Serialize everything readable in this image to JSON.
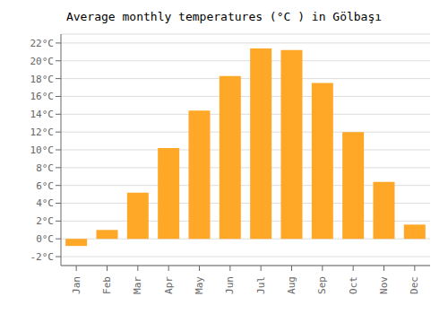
{
  "chart_data": {
    "type": "bar",
    "title": "Average monthly temperatures (°C ) in Gölbaşı",
    "categories": [
      "Jan",
      "Feb",
      "Mar",
      "Apr",
      "May",
      "Jun",
      "Jul",
      "Aug",
      "Sep",
      "Oct",
      "Nov",
      "Dec"
    ],
    "values": [
      -0.8,
      1.0,
      5.2,
      10.2,
      14.4,
      18.3,
      21.4,
      21.2,
      17.5,
      12.0,
      6.4,
      1.6
    ],
    "color": "#FFA726",
    "ylim": [
      -3,
      23
    ],
    "yticks": [
      {
        "value": -2,
        "label": "-2°C"
      },
      {
        "value": 0,
        "label": "0°C"
      },
      {
        "value": 2,
        "label": "2°C"
      },
      {
        "value": 4,
        "label": "4°C"
      },
      {
        "value": 6,
        "label": "6°C"
      },
      {
        "value": 8,
        "label": "8°C"
      },
      {
        "value": 10,
        "label": "10°C"
      },
      {
        "value": 12,
        "label": "12°C"
      },
      {
        "value": 14,
        "label": "14°C"
      },
      {
        "value": 16,
        "label": "16°C"
      },
      {
        "value": 18,
        "label": "18°C"
      },
      {
        "value": 20,
        "label": "20°C"
      },
      {
        "value": 22,
        "label": "22°C"
      }
    ],
    "grid": true
  }
}
